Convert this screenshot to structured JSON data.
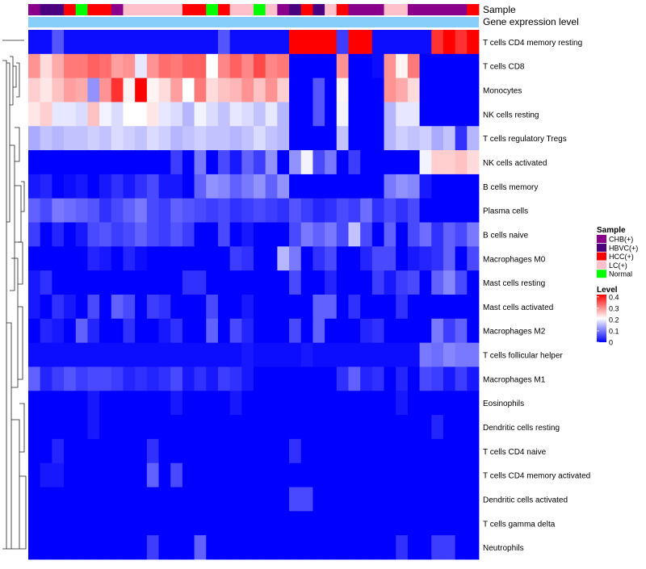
{
  "chart_data": {
    "type": "heatmap",
    "annotation_labels": {
      "sample": "Sample",
      "gene": "Gene expression level"
    },
    "legend_sample": {
      "title": "Sample",
      "entries": [
        {
          "label": "CHB(+)",
          "color": "#8b008b"
        },
        {
          "label": "HBVC(+)",
          "color": "#4b0080"
        },
        {
          "label": "HCC(+)",
          "color": "#ff0000"
        },
        {
          "label": "LC(+)",
          "color": "#ffc0cb"
        },
        {
          "label": "Normal",
          "color": "#00ff00"
        }
      ]
    },
    "legend_level": {
      "title": "Level",
      "ticks": [
        "0.4",
        "0.3",
        "0.2",
        "0.1",
        "0"
      ],
      "tick_values": [
        0.4,
        0.3,
        0.2,
        0.1,
        0
      ],
      "range": [
        0,
        0.42
      ],
      "colors": {
        "low": "#0000ff",
        "mid": "#ffffff",
        "high": "#ff0000"
      }
    },
    "gene_bar_color": "#87cefa",
    "column_groups": [
      "CHB(+)",
      "HBVC(+)",
      "HBVC(+)",
      "HCC(+)",
      "Normal",
      "HCC(+)",
      "HCC(+)",
      "CHB(+)",
      "LC(+)",
      "LC(+)",
      "LC(+)",
      "LC(+)",
      "LC(+)",
      "HCC(+)",
      "HCC(+)",
      "Normal",
      "HCC(+)",
      "LC(+)",
      "LC(+)",
      "Normal",
      "LC(+)",
      "CHB(+)",
      "HBVC(+)",
      "HCC(+)",
      "HBVC(+)",
      "LC(+)",
      "HCC(+)",
      "CHB(+)",
      "CHB(+)",
      "CHB(+)",
      "LC(+)",
      "LC(+)",
      "CHB(+)",
      "CHB(+)",
      "CHB(+)",
      "CHB(+)",
      "CHB(+)",
      "HCC(+)"
    ],
    "rows": [
      {
        "label": "T cells CD4 memory resting",
        "values": [
          0.01,
          0.01,
          0.07,
          0.01,
          0.01,
          0.01,
          0.01,
          0.01,
          0.01,
          0.01,
          0.01,
          0.01,
          0.01,
          0.01,
          0.01,
          0.01,
          0.07,
          0.01,
          0.01,
          0.01,
          0.01,
          0.01,
          0.42,
          0.42,
          0.42,
          0.42,
          0.05,
          0.42,
          0.42,
          0.01,
          0.01,
          0.01,
          0.01,
          0.01,
          0.38,
          0.42,
          0.38,
          0.42
        ]
      },
      {
        "label": "T cells CD8",
        "values": [
          0.3,
          0.24,
          0.28,
          0.32,
          0.32,
          0.34,
          0.33,
          0.29,
          0.3,
          0.19,
          0.3,
          0.33,
          0.32,
          0.34,
          0.34,
          0.21,
          0.31,
          0.34,
          0.31,
          0.36,
          0.31,
          0.32,
          0.0,
          0.0,
          0.0,
          0.0,
          0.3,
          0.0,
          0.0,
          0.01,
          0.3,
          0.22,
          0.32,
          0.0,
          0.0,
          0.0,
          0.0,
          0.0
        ]
      },
      {
        "label": "Monocytes",
        "values": [
          0.25,
          0.23,
          0.26,
          0.29,
          0.28,
          0.12,
          0.3,
          0.38,
          0.22,
          0.42,
          0.22,
          0.24,
          0.29,
          0.21,
          0.32,
          0.24,
          0.26,
          0.27,
          0.3,
          0.26,
          0.3,
          0.25,
          0.0,
          0.0,
          0.07,
          0.0,
          0.22,
          0.0,
          0.0,
          0.0,
          0.3,
          0.28,
          0.24,
          0.0,
          0.0,
          0.0,
          0.0,
          0.0
        ]
      },
      {
        "label": "NK cells resting",
        "values": [
          0.23,
          0.25,
          0.19,
          0.19,
          0.18,
          0.26,
          0.2,
          0.18,
          0.21,
          0.21,
          0.23,
          0.19,
          0.18,
          0.15,
          0.2,
          0.18,
          0.16,
          0.19,
          0.18,
          0.16,
          0.19,
          0.15,
          0.0,
          0.0,
          0.07,
          0.0,
          0.2,
          0.0,
          0.0,
          0.0,
          0.15,
          0.19,
          0.19,
          0.0,
          0.0,
          0.0,
          0.0,
          0.0
        ]
      },
      {
        "label": "T cells regulatory  Tregs",
        "values": [
          0.14,
          0.16,
          0.15,
          0.16,
          0.16,
          0.17,
          0.16,
          0.18,
          0.17,
          0.16,
          0.18,
          0.17,
          0.15,
          0.16,
          0.17,
          0.16,
          0.16,
          0.15,
          0.16,
          0.18,
          0.16,
          0.15,
          0.0,
          0.0,
          0.0,
          0.0,
          0.16,
          0.0,
          0.0,
          0.0,
          0.15,
          0.17,
          0.16,
          0.17,
          0.14,
          0.16,
          0.04,
          0.15
        ]
      },
      {
        "label": "NK cells activated",
        "values": [
          0.0,
          0.0,
          0.0,
          0.0,
          0.0,
          0.0,
          0.0,
          0.0,
          0.0,
          0.0,
          0.0,
          0.0,
          0.05,
          0.0,
          0.1,
          0.0,
          0.06,
          0.02,
          0.08,
          0.05,
          0.12,
          0.0,
          0.12,
          0.2,
          0.06,
          0.1,
          0.0,
          0.05,
          0.0,
          0.0,
          0.0,
          0.0,
          0.0,
          0.2,
          0.25,
          0.25,
          0.26,
          0.24
        ]
      },
      {
        "label": "B cells memory",
        "values": [
          0.02,
          0.03,
          0.0,
          0.01,
          0.02,
          0.0,
          0.02,
          0.04,
          0.02,
          0.04,
          0.06,
          0.02,
          0.02,
          0.0,
          0.08,
          0.12,
          0.11,
          0.08,
          0.1,
          0.12,
          0.08,
          0.12,
          0.0,
          0.0,
          0.0,
          0.0,
          0.0,
          0.0,
          0.0,
          0.0,
          0.1,
          0.12,
          0.11,
          0.02,
          0.0,
          0.0,
          0.0,
          0.0
        ]
      },
      {
        "label": "Plasma cells",
        "values": [
          0.08,
          0.06,
          0.1,
          0.09,
          0.08,
          0.07,
          0.04,
          0.06,
          0.08,
          0.1,
          0.06,
          0.05,
          0.08,
          0.07,
          0.06,
          0.05,
          0.06,
          0.04,
          0.05,
          0.06,
          0.05,
          0.04,
          0.07,
          0.05,
          0.03,
          0.04,
          0.06,
          0.05,
          0.09,
          0.04,
          0.06,
          0.04,
          0.06,
          0.0,
          0.0,
          0.0,
          0.0,
          0.0
        ]
      },
      {
        "label": "B cells naive",
        "values": [
          0.05,
          0.0,
          0.03,
          0.0,
          0.02,
          0.06,
          0.07,
          0.05,
          0.06,
          0.08,
          0.06,
          0.05,
          0.07,
          0.05,
          0.0,
          0.0,
          0.06,
          0.0,
          0.02,
          0.0,
          0.0,
          0.0,
          0.06,
          0.1,
          0.08,
          0.1,
          0.06,
          0.16,
          0.06,
          0.0,
          0.08,
          0.0,
          0.06,
          0.09,
          0.04,
          0.08,
          0.06,
          0.1
        ]
      },
      {
        "label": "Macrophages M0",
        "values": [
          0.0,
          0.0,
          0.0,
          0.0,
          0.0,
          0.03,
          0.02,
          0.0,
          0.03,
          0.01,
          0.0,
          0.0,
          0.0,
          0.0,
          0.0,
          0.0,
          0.0,
          0.05,
          0.04,
          0.0,
          0.0,
          0.15,
          0.1,
          0.0,
          0.04,
          0.06,
          0.0,
          0.0,
          0.03,
          0.06,
          0.06,
          0.0,
          0.02,
          0.03,
          0.04,
          0.08,
          0.0,
          0.06
        ]
      },
      {
        "label": "Mast cells resting",
        "values": [
          0.02,
          0.04,
          0.0,
          0.0,
          0.0,
          0.0,
          0.0,
          0.0,
          0.0,
          0.0,
          0.0,
          0.0,
          0.0,
          0.04,
          0.04,
          0.0,
          0.0,
          0.0,
          0.0,
          0.0,
          0.0,
          0.0,
          0.06,
          0.0,
          0.0,
          0.03,
          0.0,
          0.0,
          0.0,
          0.05,
          0.02,
          0.05,
          0.06,
          0.0,
          0.08,
          0.11,
          0.06,
          0.0
        ]
      },
      {
        "label": "Mast cells activated",
        "values": [
          0.02,
          0.0,
          0.04,
          0.02,
          0.0,
          0.06,
          0.0,
          0.08,
          0.06,
          0.0,
          0.05,
          0.04,
          0.0,
          0.0,
          0.0,
          0.06,
          0.0,
          0.0,
          0.02,
          0.0,
          0.0,
          0.0,
          0.0,
          0.0,
          0.08,
          0.08,
          0.0,
          0.04,
          0.0,
          0.0,
          0.0,
          0.04,
          0.0,
          0.0,
          0.0,
          0.0,
          0.0,
          0.0
        ]
      },
      {
        "label": "Macrophages M2",
        "values": [
          0.0,
          0.03,
          0.02,
          0.0,
          0.08,
          0.03,
          0.0,
          0.0,
          0.04,
          0.0,
          0.0,
          0.02,
          0.04,
          0.0,
          0.0,
          0.08,
          0.0,
          0.06,
          0.03,
          0.0,
          0.0,
          0.0,
          0.06,
          0.0,
          0.08,
          0.0,
          0.0,
          0.0,
          0.03,
          0.04,
          0.0,
          0.0,
          0.0,
          0.0,
          0.1,
          0.05,
          0.08,
          0.0
        ]
      },
      {
        "label": "T cells follicular helper",
        "values": [
          0.01,
          0.01,
          0.01,
          0.01,
          0.01,
          0.01,
          0.01,
          0.01,
          0.01,
          0.01,
          0.01,
          0.01,
          0.01,
          0.01,
          0.01,
          0.01,
          0.01,
          0.01,
          0.02,
          0.01,
          0.01,
          0.01,
          0.01,
          0.02,
          0.01,
          0.01,
          0.01,
          0.01,
          0.01,
          0.01,
          0.01,
          0.01,
          0.01,
          0.1,
          0.09,
          0.11,
          0.1,
          0.1
        ]
      },
      {
        "label": "Macrophages M1",
        "values": [
          0.08,
          0.03,
          0.05,
          0.07,
          0.05,
          0.06,
          0.06,
          0.05,
          0.03,
          0.04,
          0.03,
          0.04,
          0.06,
          0.02,
          0.04,
          0.02,
          0.05,
          0.04,
          0.02,
          0.0,
          0.0,
          0.0,
          0.0,
          0.0,
          0.0,
          0.0,
          0.04,
          0.08,
          0.03,
          0.04,
          0.0,
          0.03,
          0.0,
          0.06,
          0.05,
          0.02,
          0.05,
          0.02
        ]
      },
      {
        "label": "Eosinophils",
        "values": [
          0.0,
          0.0,
          0.0,
          0.0,
          0.0,
          0.02,
          0.0,
          0.0,
          0.0,
          0.0,
          0.0,
          0.0,
          0.02,
          0.0,
          0.0,
          0.0,
          0.0,
          0.02,
          0.0,
          0.0,
          0.0,
          0.0,
          0.0,
          0.0,
          0.0,
          0.0,
          0.0,
          0.0,
          0.0,
          0.0,
          0.0,
          0.02,
          0.0,
          0.0,
          0.0,
          0.0,
          0.0,
          0.0
        ]
      },
      {
        "label": "Dendritic cells resting",
        "values": [
          0.0,
          0.0,
          0.0,
          0.0,
          0.0,
          0.02,
          0.0,
          0.0,
          0.0,
          0.0,
          0.0,
          0.0,
          0.0,
          0.0,
          0.0,
          0.0,
          0.0,
          0.0,
          0.0,
          0.0,
          0.0,
          0.0,
          0.0,
          0.0,
          0.0,
          0.0,
          0.0,
          0.0,
          0.0,
          0.0,
          0.0,
          0.0,
          0.0,
          0.0,
          0.03,
          0.0,
          0.0,
          0.0
        ]
      },
      {
        "label": "T cells CD4 naive",
        "values": [
          0.0,
          0.0,
          0.03,
          0.0,
          0.0,
          0.0,
          0.0,
          0.0,
          0.0,
          0.0,
          0.04,
          0.0,
          0.0,
          0.0,
          0.0,
          0.0,
          0.0,
          0.0,
          0.0,
          0.0,
          0.0,
          0.0,
          0.04,
          0.0,
          0.0,
          0.0,
          0.0,
          0.0,
          0.0,
          0.0,
          0.0,
          0.0,
          0.0,
          0.0,
          0.0,
          0.0,
          0.0,
          0.0
        ]
      },
      {
        "label": "T cells CD4 memory activated",
        "values": [
          0.0,
          0.02,
          0.02,
          0.0,
          0.0,
          0.0,
          0.0,
          0.0,
          0.0,
          0.0,
          0.08,
          0.0,
          0.06,
          0.0,
          0.0,
          0.0,
          0.0,
          0.0,
          0.0,
          0.0,
          0.0,
          0.0,
          0.0,
          0.0,
          0.0,
          0.0,
          0.0,
          0.0,
          0.0,
          0.0,
          0.0,
          0.0,
          0.0,
          0.0,
          0.0,
          0.0,
          0.0,
          0.0
        ]
      },
      {
        "label": "Dendritic cells activated",
        "values": [
          0.0,
          0.0,
          0.0,
          0.0,
          0.0,
          0.0,
          0.0,
          0.0,
          0.0,
          0.0,
          0.0,
          0.0,
          0.0,
          0.0,
          0.0,
          0.0,
          0.0,
          0.0,
          0.0,
          0.0,
          0.0,
          0.0,
          0.06,
          0.06,
          0.0,
          0.0,
          0.0,
          0.0,
          0.0,
          0.0,
          0.0,
          0.0,
          0.0,
          0.0,
          0.0,
          0.0,
          0.0,
          0.0
        ]
      },
      {
        "label": "T cells gamma delta",
        "values": [
          0.0,
          0.0,
          0.0,
          0.0,
          0.0,
          0.0,
          0.0,
          0.0,
          0.0,
          0.0,
          0.0,
          0.0,
          0.0,
          0.0,
          0.0,
          0.0,
          0.0,
          0.0,
          0.0,
          0.0,
          0.0,
          0.0,
          0.0,
          0.0,
          0.0,
          0.0,
          0.0,
          0.0,
          0.0,
          0.0,
          0.0,
          0.0,
          0.0,
          0.0,
          0.0,
          0.0,
          0.0,
          0.0
        ]
      },
      {
        "label": "Neutrophils",
        "values": [
          0.0,
          0.0,
          0.0,
          0.0,
          0.0,
          0.0,
          0.0,
          0.0,
          0.0,
          0.0,
          0.05,
          0.0,
          0.0,
          0.0,
          0.08,
          0.0,
          0.0,
          0.0,
          0.0,
          0.0,
          0.0,
          0.0,
          0.0,
          0.0,
          0.0,
          0.0,
          0.0,
          0.0,
          0.0,
          0.0,
          0.0,
          0.04,
          0.0,
          0.0,
          0.05,
          0.05,
          0.0,
          0.0
        ]
      }
    ]
  }
}
